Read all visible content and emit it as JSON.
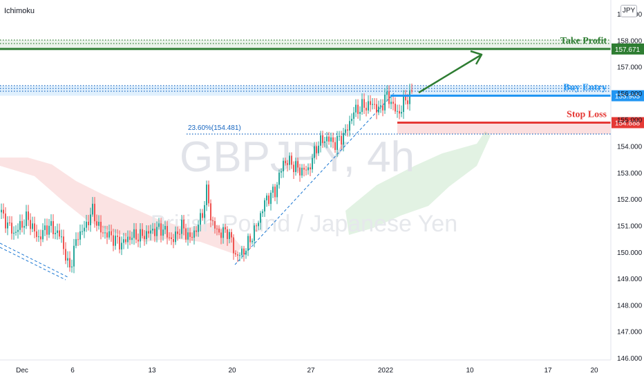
{
  "indicator_label": "Ichimoku",
  "currency_button": "JPY",
  "watermark": {
    "symbol_line": "GBPJPY, 4h",
    "name_line": "British Pound / Japanese Yen"
  },
  "colors": {
    "candle_up": "#26a69a",
    "candle_down": "#ef5350",
    "take_profit": "#2e7d32",
    "buy_entry": "#2196f3",
    "stop_loss": "#e53935",
    "fib": "#1565c0",
    "cloud_bull": "#a5d6a7",
    "cloud_bear": "#ef9a9a"
  },
  "chart_data": {
    "type": "candlestick",
    "symbol": "GBPJPY",
    "timeframe": "4h",
    "y_axis": {
      "range": [
        146.0,
        159.0
      ],
      "tick_labels": [
        "146.000",
        "147.000",
        "148.000",
        "149.000",
        "150.000",
        "151.000",
        "152.000",
        "153.000",
        "154.000",
        "155.000",
        "156.000",
        "157.000",
        "158.000",
        "159.000"
      ]
    },
    "x_axis": {
      "tick_labels": [
        "Dec",
        "6",
        "13",
        "20",
        "27",
        "2022",
        "10",
        "17",
        "20"
      ]
    },
    "levels": [
      {
        "name": "Take Profit",
        "label": "Take Profit",
        "price": 157.671,
        "price_label": "157.671"
      },
      {
        "name": "Buy Entry",
        "label": "Buy Entry",
        "price": 155.905,
        "price_label": "155.905"
      },
      {
        "name": "Stop Loss",
        "label": "Stop Loss",
        "price": 154.888,
        "price_label": "154.888"
      }
    ],
    "fibonacci": {
      "label": "23.60%(154.481)",
      "price": 154.481
    },
    "price_path": [
      [
        0,
        151.5
      ],
      [
        20,
        150.7
      ],
      [
        40,
        151.3
      ],
      [
        55,
        150.5
      ],
      [
        70,
        151.0
      ],
      [
        88,
        150.6
      ],
      [
        100,
        149.3
      ],
      [
        112,
        150.6
      ],
      [
        125,
        151.0
      ],
      [
        133,
        151.6
      ],
      [
        145,
        150.8
      ],
      [
        160,
        150.6
      ],
      [
        175,
        150.3
      ],
      [
        190,
        150.6
      ],
      [
        205,
        150.6
      ],
      [
        220,
        150.8
      ],
      [
        235,
        150.9
      ],
      [
        250,
        150.4
      ],
      [
        262,
        151.0
      ],
      [
        275,
        150.5
      ],
      [
        287,
        151.0
      ],
      [
        295,
        151.7
      ],
      [
        300,
        152.4
      ],
      [
        306,
        151.1
      ],
      [
        318,
        150.7
      ],
      [
        330,
        150.8
      ],
      [
        342,
        149.8
      ],
      [
        355,
        150.1
      ],
      [
        370,
        150.9
      ],
      [
        385,
        152.0
      ],
      [
        398,
        152.3
      ],
      [
        410,
        153.4
      ],
      [
        420,
        153.4
      ],
      [
        432,
        153.1
      ],
      [
        446,
        153.1
      ],
      [
        460,
        154.1
      ],
      [
        473,
        154.3
      ],
      [
        485,
        154.1
      ],
      [
        500,
        154.5
      ],
      [
        512,
        155.3
      ],
      [
        525,
        155.5
      ],
      [
        540,
        155.6
      ],
      [
        550,
        155.3
      ],
      [
        557,
        155.9
      ],
      [
        566,
        155.7
      ],
      [
        575,
        155.2
      ],
      [
        580,
        155.4
      ],
      [
        588,
        155.8
      ],
      [
        596,
        156.0
      ]
    ]
  }
}
